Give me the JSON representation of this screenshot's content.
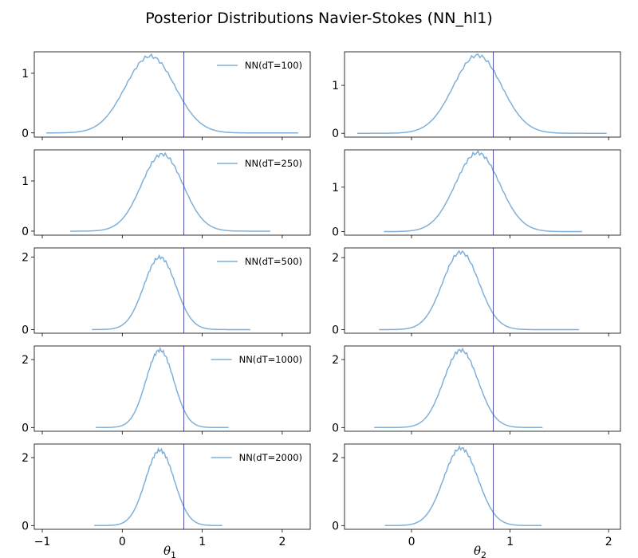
{
  "title": "Posterior Distributions Navier-Stokes (NN_hl1)",
  "xlabels": [
    "θ",
    "θ"
  ],
  "xlabel_subscripts": [
    "1",
    "2"
  ],
  "colors": {
    "curve": "#7fb0d9",
    "reference_line": "#3f3f9f"
  },
  "chart_data": [
    {
      "type": "line",
      "row": 0,
      "col": 0,
      "series": [
        {
          "name": "NN(dT=100)",
          "x_range": [
            -0.95,
            2.2
          ],
          "mean": 0.35,
          "std": 0.31
        }
      ],
      "reference_x": 0.77,
      "xlim": [
        -1.1,
        2.35
      ],
      "ylim": [
        -0.07,
        1.36
      ],
      "yticks": [
        0,
        1
      ],
      "xticks": [
        -1,
        0,
        1,
        2
      ],
      "legend": "upper right"
    },
    {
      "type": "line",
      "row": 0,
      "col": 1,
      "series": [
        {
          "name": "",
          "x_range": [
            -0.55,
            1.98
          ],
          "mean": 0.67,
          "std": 0.245
        }
      ],
      "reference_x": 0.83,
      "xlim": [
        -0.68,
        2.12
      ],
      "ylim": [
        -0.08,
        1.7
      ],
      "yticks": [
        0,
        1
      ],
      "xticks": [
        0,
        1,
        2
      ]
    },
    {
      "type": "line",
      "row": 1,
      "col": 0,
      "series": [
        {
          "name": "NN(dT=250)",
          "x_range": [
            -0.65,
            1.85
          ],
          "mean": 0.5,
          "std": 0.26
        }
      ],
      "reference_x": 0.77,
      "xlim": [
        -1.1,
        2.35
      ],
      "ylim": [
        -0.08,
        1.62
      ],
      "yticks": [
        0,
        1
      ],
      "xticks": [
        -1,
        0,
        1,
        2
      ],
      "legend": "upper right"
    },
    {
      "type": "line",
      "row": 1,
      "col": 1,
      "series": [
        {
          "name": "",
          "x_range": [
            -0.28,
            1.73
          ],
          "mean": 0.67,
          "std": 0.225
        }
      ],
      "reference_x": 0.83,
      "xlim": [
        -0.68,
        2.12
      ],
      "ylim": [
        -0.08,
        1.84
      ],
      "yticks": [
        0,
        1
      ],
      "xticks": [
        0,
        1,
        2
      ]
    },
    {
      "type": "line",
      "row": 2,
      "col": 0,
      "series": [
        {
          "name": "NN(dT=500)",
          "x_range": [
            -0.38,
            1.6
          ],
          "mean": 0.47,
          "std": 0.2
        }
      ],
      "reference_x": 0.77,
      "xlim": [
        -1.1,
        2.35
      ],
      "ylim": [
        -0.1,
        2.25
      ],
      "yticks": [
        0,
        2
      ],
      "xticks": [
        -1,
        0,
        1,
        2
      ],
      "legend": "upper right"
    },
    {
      "type": "line",
      "row": 2,
      "col": 1,
      "series": [
        {
          "name": "",
          "x_range": [
            -0.33,
            1.7
          ],
          "mean": 0.5,
          "std": 0.185
        }
      ],
      "reference_x": 0.83,
      "xlim": [
        -0.68,
        2.12
      ],
      "ylim": [
        -0.1,
        2.27
      ],
      "yticks": [
        0,
        2
      ],
      "xticks": [
        0,
        1,
        2
      ]
    },
    {
      "type": "line",
      "row": 3,
      "col": 0,
      "series": [
        {
          "name": "NN(dT=1000)",
          "x_range": [
            -0.33,
            1.33
          ],
          "mean": 0.47,
          "std": 0.175
        }
      ],
      "reference_x": 0.77,
      "xlim": [
        -1.1,
        2.35
      ],
      "ylim": [
        -0.11,
        2.4
      ],
      "yticks": [
        0,
        2
      ],
      "xticks": [
        -1,
        0,
        1,
        2
      ],
      "legend": "upper right"
    },
    {
      "type": "line",
      "row": 3,
      "col": 1,
      "series": [
        {
          "name": "",
          "x_range": [
            -0.38,
            1.33
          ],
          "mean": 0.5,
          "std": 0.175
        }
      ],
      "reference_x": 0.83,
      "xlim": [
        -0.68,
        2.12
      ],
      "ylim": [
        -0.11,
        2.4
      ],
      "yticks": [
        0,
        2
      ],
      "xticks": [
        0,
        1,
        2
      ]
    },
    {
      "type": "line",
      "row": 4,
      "col": 0,
      "series": [
        {
          "name": "NN(dT=2000)",
          "x_range": [
            -0.35,
            1.25
          ],
          "mean": 0.47,
          "std": 0.18
        }
      ],
      "reference_x": 0.77,
      "xlim": [
        -1.1,
        2.35
      ],
      "ylim": [
        -0.11,
        2.4
      ],
      "yticks": [
        0,
        2
      ],
      "xticks": [
        -1,
        0,
        1,
        2
      ],
      "legend": "upper right"
    },
    {
      "type": "line",
      "row": 4,
      "col": 1,
      "series": [
        {
          "name": "",
          "x_range": [
            -0.27,
            1.32
          ],
          "mean": 0.5,
          "std": 0.175
        }
      ],
      "reference_x": 0.83,
      "xlim": [
        -0.68,
        2.12
      ],
      "ylim": [
        -0.11,
        2.4
      ],
      "yticks": [
        0,
        2
      ],
      "xticks": [
        0,
        1,
        2
      ]
    }
  ]
}
